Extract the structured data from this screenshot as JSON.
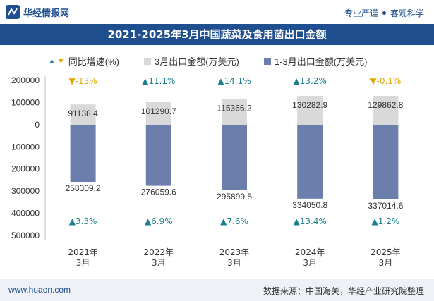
{
  "header": {
    "site_name": "华经情报网",
    "slogan_left": "专业严谨",
    "slogan_right": "客观科学"
  },
  "title": "2021-2025年3月中国蔬菜及食用菌出口金额",
  "legend": {
    "growth": "同比增速(%)",
    "month": "3月出口金额(万美元)",
    "cumulative": "1-3月出口金额(万美元)"
  },
  "footer": {
    "website": "www.huaon.com",
    "source": "数据来源：中国海关，华经产业研究院整理"
  },
  "chart_data": {
    "type": "bar",
    "categories": [
      "2021年3月",
      "2022年3月",
      "2023年3月",
      "2024年3月",
      "2025年3月"
    ],
    "category_lines": [
      [
        "2021年",
        "3月"
      ],
      [
        "2022年",
        "3月"
      ],
      [
        "2023年",
        "3月"
      ],
      [
        "2024年",
        "3月"
      ],
      [
        "2025年",
        "3月"
      ]
    ],
    "ylim": [
      -500000,
      200000
    ],
    "yticks": [
      200000,
      100000,
      0,
      -100000,
      -200000,
      -300000,
      -400000,
      -500000
    ],
    "ytick_labels": [
      "200000",
      "100000",
      "0",
      "100000",
      "200000",
      "300000",
      "400000",
      "500000"
    ],
    "series": [
      {
        "name": "3月出口金额(万美元)",
        "values": [
          91138.4,
          101290.7,
          115366.2,
          130282.9,
          129862.8
        ],
        "labels": [
          "91138.4",
          "101290.7",
          "115366.2",
          "130282.9",
          "129862.8"
        ],
        "growth": [
          -13,
          11.1,
          14.1,
          13.2,
          -0.1
        ],
        "growth_labels": [
          "-13%",
          "11.1%",
          "14.1%",
          "13.2%",
          "-0.1%"
        ],
        "color": "#d9d9d9"
      },
      {
        "name": "1-3月出口金额(万美元)",
        "values": [
          258309.2,
          276059.6,
          295899.5,
          334050.8,
          337014.6
        ],
        "labels": [
          "258309.2",
          "276059.6",
          "295899.5",
          "334050.8",
          "337014.6"
        ],
        "growth": [
          3.3,
          6.9,
          7.6,
          13.4,
          1.2
        ],
        "growth_labels": [
          "3.3%",
          "6.9%",
          "7.6%",
          "13.4%",
          "1.2%"
        ],
        "color": "#6c7eab"
      }
    ],
    "up_color": "#1a7f8e",
    "down_color": "#e0a800",
    "grid": false,
    "legend_position": "top"
  }
}
